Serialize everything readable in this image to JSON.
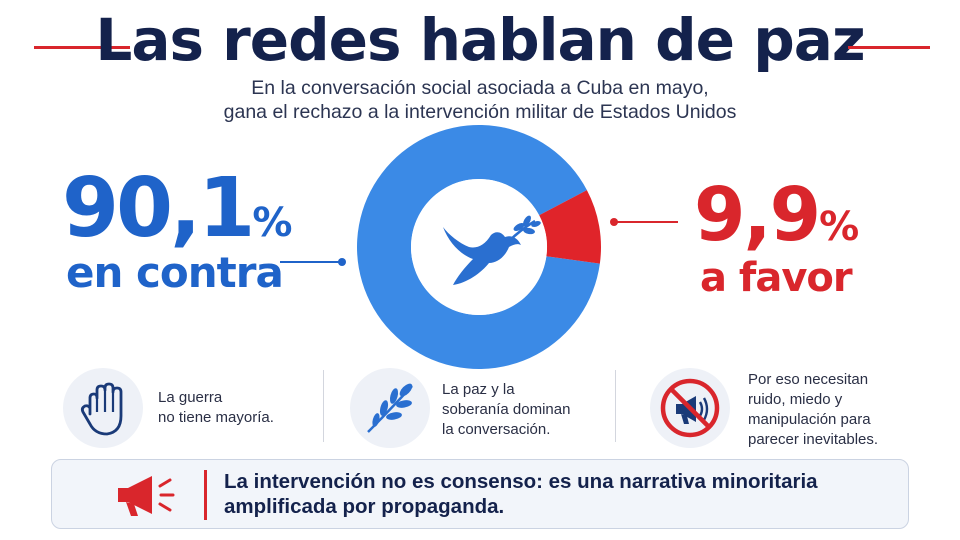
{
  "title": "Las redes hablan de paz",
  "subtitle_line1": "En la conversación social asociada a Cuba en mayo,",
  "subtitle_line2": "gana el rechazo a la intervención militar de Estados Unidos",
  "colors": {
    "contra": "#3b8ae6",
    "favor": "#e0242a",
    "navy": "#14224c",
    "icon_blue": "#2a6fd0"
  },
  "chart_data": {
    "type": "pie",
    "style": "donut",
    "slices": [
      {
        "value_text": "90,1",
        "unit": "%",
        "label": "en contra",
        "value": 90.1,
        "color": "#3b8ae6"
      },
      {
        "value_text": "9,9",
        "unit": "%",
        "label": "a favor",
        "value": 9.9,
        "color": "#e0242a"
      }
    ],
    "center_icon": "dove-olive-branch-icon"
  },
  "points": [
    {
      "icon": "raised-hand-icon",
      "line1": "La guerra",
      "line2": "no tiene mayoría."
    },
    {
      "icon": "olive-branch-icon",
      "line1": "La paz y la",
      "line2": "soberanía dominan",
      "line3": "la conversación."
    },
    {
      "icon": "no-megaphone-icon",
      "line1": "Por eso necesitan",
      "line2": "ruido, miedo y",
      "line3": "manipulación para",
      "line4": "parecer inevitables."
    }
  ],
  "banner": {
    "icon": "megaphone-icon",
    "line1": "La intervención no es consenso: es una narrativa minoritaria",
    "line2": "amplificada por propaganda."
  }
}
